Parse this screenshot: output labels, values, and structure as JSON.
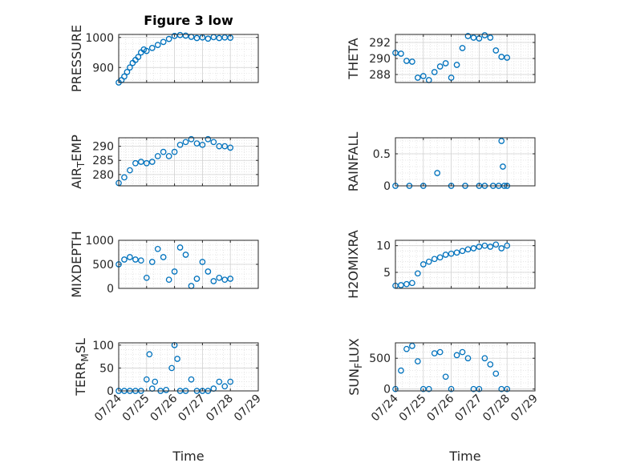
{
  "figure": {
    "title": "Figure 3 low"
  },
  "colors": {
    "marker": "#0072BD",
    "axis": "#262626",
    "grid": "#dfdfdf"
  },
  "chart_data": [
    {
      "id": "pressure",
      "type": "scatter",
      "title": "Figure 3 low",
      "ylabel_parts": [
        "PRESSURE"
      ],
      "xlabel": "",
      "ylim": [
        850,
        1010
      ],
      "yticks": [
        900,
        1000
      ],
      "yticklabels": [
        "900",
        "1000"
      ],
      "x_days": [
        0,
        0.1,
        0.2,
        0.3,
        0.4,
        0.5,
        0.6,
        0.7,
        0.8,
        0.9,
        1.0,
        1.2,
        1.4,
        1.6,
        1.8,
        2.0,
        2.2,
        2.4,
        2.6,
        2.8,
        3.0,
        3.2,
        3.4,
        3.6,
        3.8,
        4.0
      ],
      "y": [
        850,
        858,
        870,
        885,
        900,
        915,
        925,
        935,
        950,
        960,
        955,
        965,
        975,
        985,
        995,
        1005,
        1008,
        1006,
        1002,
        998,
        1000,
        996,
        1001,
        998,
        1000,
        999
      ]
    },
    {
      "id": "theta",
      "type": "scatter",
      "title": "",
      "ylabel_parts": [
        "THETA"
      ],
      "xlabel": "",
      "ylim": [
        287,
        293
      ],
      "yticks": [
        288,
        290,
        292
      ],
      "yticklabels": [
        "288",
        "290",
        "292"
      ],
      "x_days": [
        0,
        0.2,
        0.4,
        0.6,
        0.8,
        1.0,
        1.2,
        1.4,
        1.6,
        1.8,
        2.0,
        2.2,
        2.4,
        2.6,
        2.8,
        3.0,
        3.2,
        3.4,
        3.6,
        3.8,
        4.0
      ],
      "y": [
        290.7,
        290.6,
        289.7,
        289.6,
        287.6,
        287.8,
        287.3,
        288.3,
        289.0,
        289.4,
        287.6,
        289.2,
        291.3,
        292.8,
        292.6,
        292.5,
        292.9,
        292.6,
        291.0,
        290.2,
        290.1
      ]
    },
    {
      "id": "air_temp",
      "type": "scatter",
      "title": "",
      "ylabel_parts": [
        "AIR",
        "T",
        "EMP"
      ],
      "xlabel": "",
      "ylim": [
        276,
        293
      ],
      "yticks": [
        280,
        285,
        290
      ],
      "yticklabels": [
        "280",
        "285",
        "290"
      ],
      "x_days": [
        0,
        0.2,
        0.4,
        0.6,
        0.8,
        1.0,
        1.2,
        1.4,
        1.6,
        1.8,
        2.0,
        2.2,
        2.4,
        2.6,
        2.8,
        3.0,
        3.2,
        3.4,
        3.6,
        3.8,
        4.0
      ],
      "y": [
        277,
        279,
        281.5,
        284,
        284.5,
        284,
        284.5,
        286.5,
        288,
        286.5,
        288,
        290.5,
        291.5,
        292.5,
        291,
        290.5,
        292.5,
        291.5,
        290,
        290,
        289.5
      ]
    },
    {
      "id": "rainfall",
      "type": "scatter",
      "title": "",
      "ylabel_parts": [
        "RAINFALL"
      ],
      "xlabel": "",
      "ylim": [
        0,
        0.75
      ],
      "yticks": [
        0,
        0.5
      ],
      "yticklabels": [
        "0",
        "0.5"
      ],
      "x_days": [
        0,
        0.5,
        1.0,
        1.5,
        2.0,
        2.5,
        3.0,
        3.2,
        3.5,
        3.7,
        3.8,
        3.85,
        3.9,
        4.0
      ],
      "y": [
        0,
        0,
        0,
        0.2,
        0,
        0,
        0,
        0,
        0,
        0,
        0.7,
        0.3,
        0,
        0
      ]
    },
    {
      "id": "mixdepth",
      "type": "scatter",
      "title": "",
      "ylabel_parts": [
        "MIXDEPTH"
      ],
      "xlabel": "",
      "ylim": [
        0,
        1000
      ],
      "yticks": [
        0,
        500,
        1000
      ],
      "yticklabels": [
        "0",
        "500",
        "1000"
      ],
      "x_days": [
        0,
        0.2,
        0.4,
        0.6,
        0.8,
        1.0,
        1.2,
        1.4,
        1.6,
        1.8,
        2.0,
        2.2,
        2.4,
        2.6,
        2.8,
        3.0,
        3.2,
        3.4,
        3.6,
        3.8,
        4.0
      ],
      "y": [
        500,
        600,
        650,
        600,
        580,
        220,
        550,
        820,
        650,
        180,
        350,
        850,
        700,
        50,
        200,
        550,
        350,
        150,
        220,
        180,
        200
      ]
    },
    {
      "id": "h2omixra",
      "type": "scatter",
      "title": "",
      "ylabel_parts": [
        "H2OMIXRA"
      ],
      "xlabel": "",
      "ylim": [
        2,
        11
      ],
      "yticks": [
        5,
        10
      ],
      "yticklabels": [
        "5",
        "10"
      ],
      "x_days": [
        0,
        0.2,
        0.4,
        0.6,
        0.8,
        1.0,
        1.2,
        1.4,
        1.6,
        1.8,
        2.0,
        2.2,
        2.4,
        2.6,
        2.8,
        3.0,
        3.2,
        3.4,
        3.6,
        3.8,
        4.0
      ],
      "y": [
        2.5,
        2.6,
        2.8,
        3.0,
        4.8,
        6.5,
        7.0,
        7.5,
        7.8,
        8.3,
        8.5,
        8.7,
        9.0,
        9.3,
        9.5,
        9.8,
        10.0,
        9.8,
        10.2,
        9.5,
        10.0
      ]
    },
    {
      "id": "terr_msl",
      "type": "scatter",
      "title": "",
      "ylabel_parts": [
        "TERR",
        "M",
        "SL"
      ],
      "xlabel": "Time",
      "ylim": [
        0,
        105
      ],
      "yticks": [
        0,
        50,
        100
      ],
      "yticklabels": [
        "0",
        "50",
        "100"
      ],
      "x_days": [
        0,
        0.2,
        0.4,
        0.6,
        0.8,
        1.0,
        1.1,
        1.2,
        1.3,
        1.5,
        1.7,
        1.9,
        2.0,
        2.1,
        2.2,
        2.4,
        2.6,
        2.8,
        3.0,
        3.2,
        3.4,
        3.6,
        3.8,
        4.0
      ],
      "y": [
        0,
        0,
        0,
        0,
        0,
        25,
        80,
        5,
        20,
        0,
        2,
        50,
        100,
        70,
        0,
        0,
        25,
        0,
        0,
        0,
        5,
        20,
        10,
        20
      ]
    },
    {
      "id": "sun_flux",
      "type": "scatter",
      "title": "",
      "ylabel_parts": [
        "SUN",
        "F",
        "LUX"
      ],
      "xlabel": "Time",
      "ylim": [
        -30,
        750
      ],
      "yticks": [
        0,
        500
      ],
      "yticklabels": [
        "0",
        "500"
      ],
      "x_days": [
        0,
        0.2,
        0.4,
        0.6,
        0.8,
        1.0,
        1.2,
        1.4,
        1.6,
        1.8,
        2.0,
        2.2,
        2.4,
        2.6,
        2.8,
        3.0,
        3.2,
        3.4,
        3.6,
        3.8,
        4.0
      ],
      "y": [
        0,
        300,
        650,
        700,
        450,
        0,
        0,
        580,
        600,
        200,
        0,
        550,
        600,
        500,
        0,
        0,
        500,
        400,
        250,
        0,
        0
      ]
    }
  ],
  "xaxis": {
    "xlim_days": [
      0,
      5
    ],
    "tick_days": [
      0,
      1,
      2,
      3,
      4,
      5
    ],
    "tick_labels": [
      "07/24",
      "07/25",
      "07/26",
      "07/27",
      "07/28",
      "07/29"
    ]
  }
}
